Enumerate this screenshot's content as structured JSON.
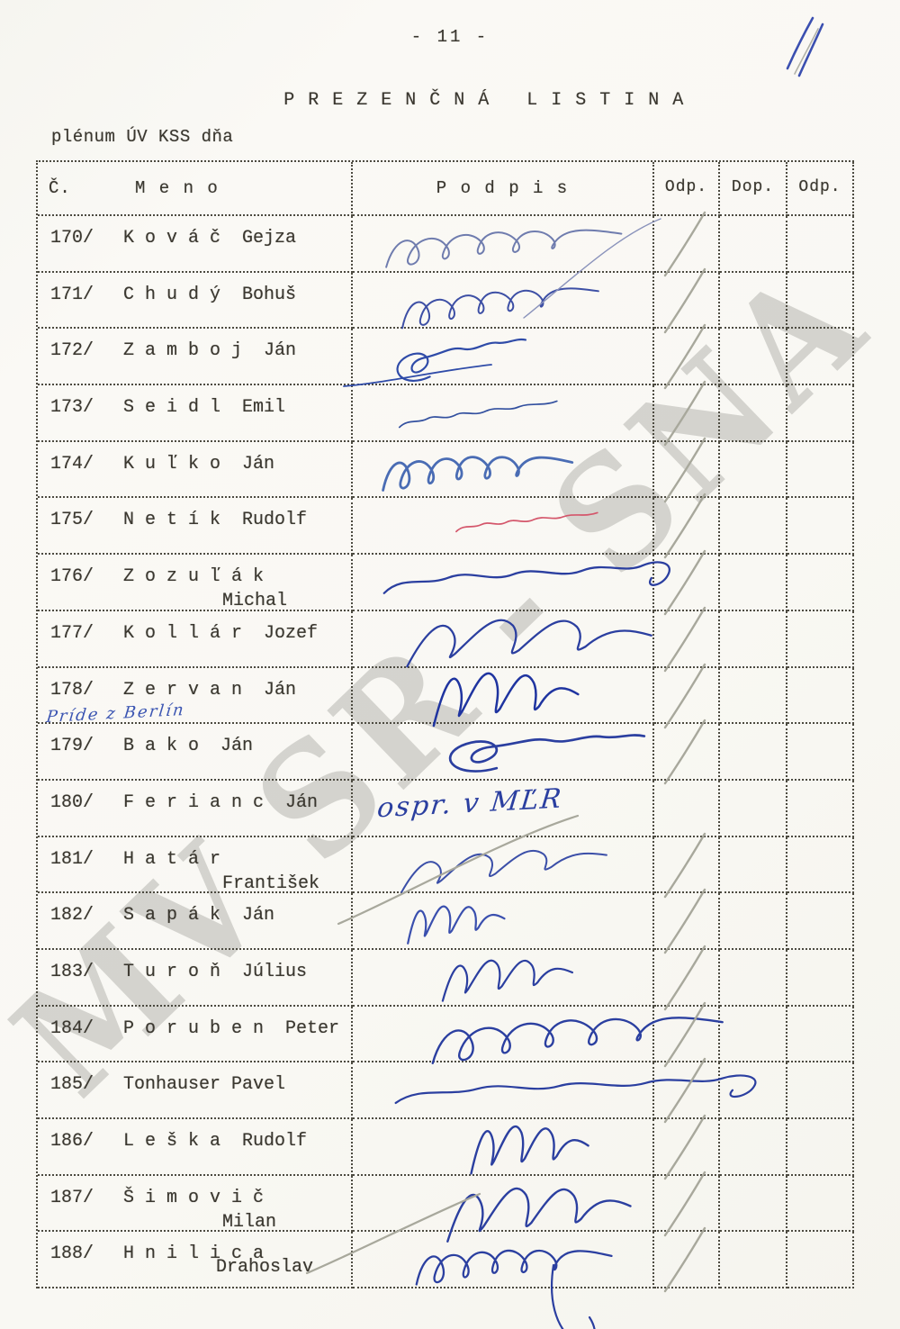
{
  "page": {
    "page_number": "- 11 -",
    "handwritten_corner_mark": "11",
    "title": "P R E Z E N Č N Á   L I S T I N A",
    "subtitle": "plénum ÚV KSS dňa",
    "watermark": "MV SR - SNA"
  },
  "table": {
    "header": {
      "number": "Č.",
      "name": "M e n o",
      "signature": "P o d p i s",
      "odp1": "Odp.",
      "dop": "Dop.",
      "odp2": "Odp."
    },
    "rows": [
      {
        "number": "170/",
        "name": "K o v á č  Gejza",
        "attendance_slash": true,
        "signature": {
          "type": "scribble",
          "ink": "#6f7cae"
        }
      },
      {
        "number": "171/",
        "name": "C h u d ý  Bohuš",
        "attendance_slash": true,
        "signature": {
          "type": "scribble",
          "ink": "#3d4fa5"
        }
      },
      {
        "number": "172/",
        "name": "Z a m b o j  Ján",
        "attendance_slash": true,
        "signature": {
          "type": "scribble",
          "ink": "#2f4ba8"
        }
      },
      {
        "number": "173/",
        "name": "S e i d l  Emil",
        "attendance_slash": true,
        "signature": {
          "type": "scribble",
          "ink": "#33509f"
        }
      },
      {
        "number": "174/",
        "name": "K u ľ k o  Ján",
        "attendance_slash": true,
        "signature": {
          "type": "scribble",
          "ink": "#4a6cb4"
        }
      },
      {
        "number": "175/",
        "name": "N e t í k  Rudolf",
        "attendance_slash": true,
        "signature": {
          "type": "scribble",
          "ink": "#d4566b"
        }
      },
      {
        "number": "176/",
        "name": "Z o z u ľ á k",
        "name_line2": "Michal",
        "attendance_slash": true,
        "signature": {
          "type": "scribble",
          "ink": "#2b3fa0"
        }
      },
      {
        "number": "177/",
        "name": "K o l l á r  Jozef",
        "attendance_slash": true,
        "signature": {
          "type": "scribble",
          "ink": "#2b3fa0"
        }
      },
      {
        "number": "178/",
        "name": "Z e r v a n  Ján",
        "handwritten_note": "Príde z Berlín",
        "attendance_slash": true,
        "signature": {
          "type": "scribble",
          "ink": "#1f34a0"
        }
      },
      {
        "number": "179/",
        "name": "B a k o  Ján",
        "attendance_slash": true,
        "signature": {
          "type": "scribble",
          "ink": "#2b3fa0"
        }
      },
      {
        "number": "180/",
        "name": "F e r i a n c  Ján",
        "attendance_slash": false,
        "signature": {
          "type": "handwritten-text",
          "text": "ospr. v MĽR",
          "ink": "#2b3fa0"
        }
      },
      {
        "number": "181/",
        "name": "H a t á r",
        "name_line2": "František",
        "attendance_slash": true,
        "signature": {
          "type": "scribble",
          "ink": "#3b4fa8"
        }
      },
      {
        "number": "182/",
        "name": "S a p á k  Ján",
        "attendance_slash": true,
        "signature": {
          "type": "scribble",
          "ink": "#3a4fae"
        }
      },
      {
        "number": "183/",
        "name": "T u r o ň  Július",
        "attendance_slash": true,
        "signature": {
          "type": "scribble",
          "ink": "#2b3fa0"
        }
      },
      {
        "number": "184/",
        "name": "P o r u b e n  Peter",
        "attendance_slash": true,
        "signature": {
          "type": "scribble",
          "ink": "#2b3fa0"
        }
      },
      {
        "number": "185/",
        "name": "Tonhauser Pavel",
        "attendance_slash": true,
        "signature": {
          "type": "scribble",
          "ink": "#2b3fa0"
        }
      },
      {
        "number": "186/",
        "name": "L e š k a  Rudolf",
        "attendance_slash": true,
        "signature": {
          "type": "scribble",
          "ink": "#2b3fa0"
        }
      },
      {
        "number": "187/",
        "name": "Š i m o v i č",
        "name_line2": "Milan",
        "attendance_slash": true,
        "signature": {
          "type": "scribble",
          "ink": "#2b3fa0"
        }
      },
      {
        "number": "188/",
        "name": "H n i l i c a",
        "name_line2": "Drahoslav",
        "attendance_slash": true,
        "signature": {
          "type": "scribble",
          "ink": "#2b3fa0"
        }
      }
    ]
  },
  "colors": {
    "typewriter_ink": "#3a372f",
    "grid_dots": "#4c4a40",
    "pencil_slash": "#a8a89c",
    "blue_ink": "#2b3fa0",
    "red_ink": "#d4566b",
    "watermark_grey": "#7d7d7b"
  }
}
